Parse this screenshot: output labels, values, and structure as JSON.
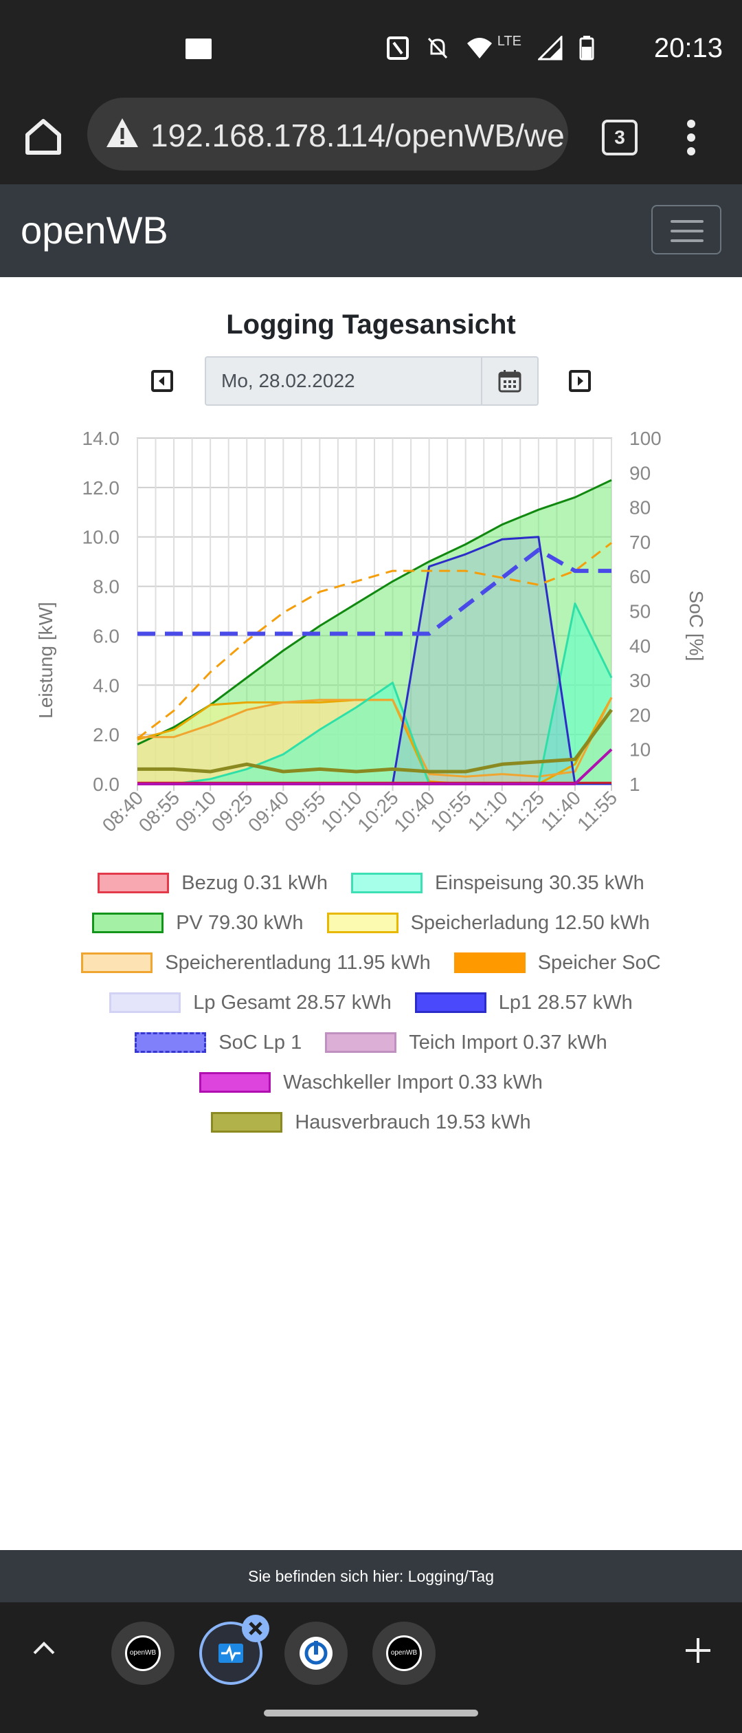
{
  "status_bar": {
    "time": "20:13",
    "network": "LTE"
  },
  "browser": {
    "url": "192.168.178.114/openWB/we",
    "tab_count": "3"
  },
  "navbar": {
    "brand": "openWB"
  },
  "page": {
    "title": "Logging Tagesansicht",
    "date": "Mo, 28.02.2022"
  },
  "chart_data": {
    "type": "area",
    "title": "",
    "ylabel": "Leistung [kW]",
    "ylabel_right": "SoC [%]",
    "ylim": [
      0,
      14
    ],
    "ylim_right": [
      1,
      100
    ],
    "y_ticks": [
      "14.0",
      "12.0",
      "10.0",
      "8.0",
      "6.0",
      "4.0",
      "2.0",
      "0.0"
    ],
    "y_ticks_right": [
      "100",
      "90",
      "80",
      "70",
      "60",
      "50",
      "40",
      "30",
      "20",
      "10",
      "1"
    ],
    "x_ticks": [
      "08:40",
      "08:55",
      "09:10",
      "09:25",
      "09:40",
      "09:55",
      "10:10",
      "10:25",
      "10:40",
      "10:55",
      "11:10",
      "11:25",
      "11:40",
      "11:55"
    ],
    "grid": true,
    "series": [
      {
        "name": "PV",
        "values": [
          1.6,
          2.3,
          3.2,
          4.3,
          5.4,
          6.4,
          7.3,
          8.2,
          9.0,
          9.7,
          10.5,
          11.1,
          11.6,
          12.3
        ]
      },
      {
        "name": "Speicherladung",
        "values": [
          1.8,
          2.2,
          3.2,
          3.3,
          3.3,
          3.3,
          3.4,
          3.4,
          0.1,
          0.0,
          0.0,
          0.0,
          0.8,
          3.5
        ]
      },
      {
        "name": "Speicherentladung",
        "values": [
          1.9,
          1.9,
          2.4,
          3.0,
          3.3,
          3.4,
          3.4,
          3.4,
          0.4,
          0.3,
          0.4,
          0.3,
          0.5,
          3.5
        ]
      },
      {
        "name": "Einspeisung",
        "values": [
          0.0,
          0.0,
          0.2,
          0.6,
          1.2,
          2.2,
          3.1,
          4.1,
          0.0,
          0.0,
          0.0,
          0.0,
          7.3,
          4.3
        ]
      },
      {
        "name": "Lp1",
        "values": [
          0.0,
          0.0,
          0.0,
          0.0,
          0.0,
          0.0,
          0.0,
          0.0,
          8.8,
          9.3,
          9.9,
          10.0,
          0.0,
          0.0
        ]
      },
      {
        "name": "Hausverbrauch",
        "values": [
          0.6,
          0.6,
          0.5,
          0.8,
          0.5,
          0.6,
          0.5,
          0.6,
          0.5,
          0.5,
          0.8,
          0.9,
          1.0,
          3.0
        ]
      },
      {
        "name": "Bezug",
        "values": [
          0.05,
          0.05,
          0.05,
          0.05,
          0.05,
          0.05,
          0.05,
          0.05,
          0.05,
          0.05,
          0.05,
          0.05,
          0.05,
          0.05
        ]
      },
      {
        "name": "Waschkeller Import",
        "values": [
          0,
          0,
          0,
          0,
          0,
          0,
          0,
          0,
          0,
          0,
          0,
          0,
          0,
          1.4
        ]
      },
      {
        "name": "Speicher SoC",
        "values": [
          14,
          22,
          33,
          42,
          50,
          56,
          59,
          62,
          62,
          62,
          60,
          58,
          62,
          70
        ]
      },
      {
        "name": "SoC Lp 1",
        "values": [
          44,
          44,
          44,
          44,
          44,
          44,
          44,
          44,
          44,
          52,
          60,
          68,
          62,
          62
        ]
      }
    ]
  },
  "legend": [
    [
      {
        "label": "Bezug 0.31 kWh",
        "fill": "#f7a8b0",
        "border": "#e33a4a",
        "dashed": false
      },
      {
        "label": "Einspeisung 30.35 kWh",
        "fill": "#a6ffe8",
        "border": "#3ce0b4",
        "dashed": false
      }
    ],
    [
      {
        "label": "PV 79.30 kWh",
        "fill": "#a4f0a4",
        "border": "#13941a",
        "dashed": false
      },
      {
        "label": "Speicherladung 12.50 kWh",
        "fill": "#fcf9b0",
        "border": "#e8b800",
        "dashed": false
      }
    ],
    [
      {
        "label": "Speicherentladung 11.95 kWh",
        "fill": "#fde2b4",
        "border": "#f0a530",
        "dashed": false
      },
      {
        "label": "Speicher SoC",
        "fill": "#ff9900",
        "border": "#ff9900",
        "dashed": true
      }
    ],
    [
      {
        "label": "Lp Gesamt 28.57 kWh",
        "fill": "#e4e4fb",
        "border": "#d2d2f5",
        "dashed": false
      },
      {
        "label": "Lp1 28.57 kWh",
        "fill": "#4a4afc",
        "border": "#2c2cc8",
        "dashed": false
      }
    ],
    [
      {
        "label": "SoC Lp 1",
        "fill": "#8080fa",
        "border": "#3838d0",
        "dashed": true
      },
      {
        "label": "Teich Import 0.37 kWh",
        "fill": "#dbafd6",
        "border": "#c090c0",
        "dashed": false
      }
    ],
    [
      {
        "label": "Waschkeller Import 0.33 kWh",
        "fill": "#dd44dd",
        "border": "#b010b0",
        "dashed": false
      }
    ],
    [
      {
        "label": "Hausverbrauch 19.53 kWh",
        "fill": "#b2b24a",
        "border": "#8a8a20",
        "dashed": false
      }
    ]
  ],
  "footer": {
    "text": "Sie befinden sich hier: Logging/Tag"
  }
}
